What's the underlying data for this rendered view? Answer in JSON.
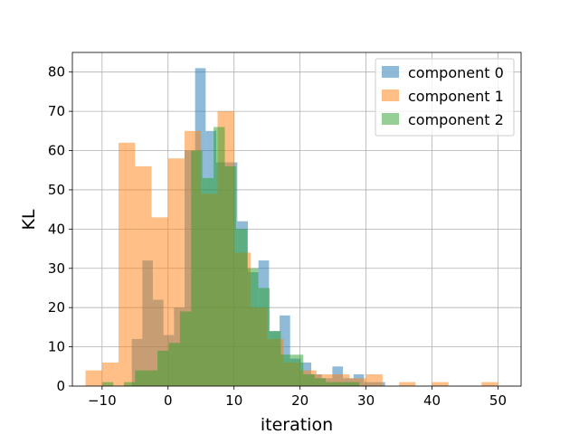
{
  "chart_data": {
    "type": "histogram",
    "title": "",
    "xlabel": "iteration",
    "ylabel": "KL",
    "xlim": [
      -14.5,
      53.5
    ],
    "ylim": [
      0,
      85
    ],
    "xticks": [
      -10,
      0,
      10,
      20,
      30,
      40,
      50
    ],
    "yticks": [
      0,
      10,
      20,
      30,
      40,
      50,
      60,
      70,
      80
    ],
    "grid": true,
    "legend_position": "top-right",
    "series": [
      {
        "name": "component 0",
        "color": "#1f77b4",
        "bins": [
          [
            -5.5,
            -3.9,
            12
          ],
          [
            -3.9,
            -2.3,
            32
          ],
          [
            -2.3,
            -0.7,
            22
          ],
          [
            -0.7,
            0.9,
            13
          ],
          [
            0.9,
            2.5,
            20
          ],
          [
            2.5,
            4.1,
            60
          ],
          [
            4.1,
            5.7,
            81
          ],
          [
            5.7,
            7.3,
            65
          ],
          [
            7.3,
            8.9,
            57
          ],
          [
            8.9,
            10.5,
            57
          ],
          [
            10.5,
            12.1,
            42
          ],
          [
            12.1,
            13.7,
            29
          ],
          [
            13.7,
            15.3,
            32
          ],
          [
            15.3,
            16.9,
            14
          ],
          [
            16.9,
            18.5,
            18
          ],
          [
            18.5,
            20.1,
            7
          ],
          [
            20.1,
            21.7,
            6
          ],
          [
            21.7,
            23.3,
            3
          ],
          [
            23.3,
            24.9,
            2
          ],
          [
            24.9,
            26.5,
            5
          ],
          [
            26.5,
            28.1,
            2
          ],
          [
            28.1,
            29.7,
            3
          ],
          [
            29.7,
            31.3,
            1
          ],
          [
            31.3,
            32.9,
            1
          ]
        ]
      },
      {
        "name": "component 1",
        "color": "#ff7f0e",
        "bins": [
          [
            -12.5,
            -10.0,
            4
          ],
          [
            -10.0,
            -7.5,
            6
          ],
          [
            -7.5,
            -5.0,
            62
          ],
          [
            -5.0,
            -2.5,
            56
          ],
          [
            -2.5,
            0.0,
            43
          ],
          [
            0.0,
            2.5,
            58
          ],
          [
            2.5,
            5.0,
            65
          ],
          [
            5.0,
            7.5,
            49
          ],
          [
            7.5,
            10.0,
            70
          ],
          [
            10.0,
            12.5,
            34
          ],
          [
            12.5,
            15.0,
            20
          ],
          [
            15.0,
            17.5,
            12
          ],
          [
            17.5,
            20.0,
            6
          ],
          [
            20.0,
            22.5,
            4
          ],
          [
            22.5,
            25.0,
            3
          ],
          [
            25.0,
            27.5,
            3
          ],
          [
            27.5,
            30.0,
            2
          ],
          [
            30.0,
            32.5,
            3
          ],
          [
            35.0,
            37.5,
            1
          ],
          [
            40.0,
            42.5,
            1
          ],
          [
            47.5,
            50.0,
            1
          ]
        ]
      },
      {
        "name": "component 2",
        "color": "#2ca02c",
        "bins": [
          [
            -10.0,
            -8.3,
            1
          ],
          [
            -6.7,
            -5.0,
            1
          ],
          [
            -5.0,
            -3.3,
            4
          ],
          [
            -3.3,
            -1.6,
            4
          ],
          [
            -1.6,
            0.1,
            9
          ],
          [
            0.1,
            1.8,
            11
          ],
          [
            1.8,
            3.5,
            19
          ],
          [
            3.5,
            5.2,
            60
          ],
          [
            5.2,
            6.9,
            53
          ],
          [
            6.9,
            8.6,
            66
          ],
          [
            8.6,
            10.3,
            56
          ],
          [
            10.3,
            12.0,
            40
          ],
          [
            12.0,
            13.7,
            30
          ],
          [
            13.7,
            15.4,
            25
          ],
          [
            15.4,
            17.1,
            14
          ],
          [
            17.1,
            18.8,
            8
          ],
          [
            18.8,
            20.5,
            8
          ],
          [
            20.5,
            22.2,
            3
          ],
          [
            22.2,
            23.9,
            2
          ],
          [
            23.9,
            25.6,
            1
          ],
          [
            25.6,
            27.3,
            1
          ],
          [
            27.3,
            29.0,
            1
          ]
        ]
      }
    ]
  }
}
